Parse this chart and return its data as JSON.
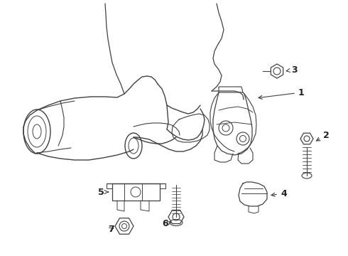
{
  "background_color": "#ffffff",
  "line_color": "#404040",
  "line_width": 0.8,
  "label_color": "#222222",
  "fig_width": 4.9,
  "fig_height": 3.6,
  "dpi": 100,
  "arrow_color": "#404040",
  "img_extent": [
    0,
    490,
    0,
    360
  ]
}
